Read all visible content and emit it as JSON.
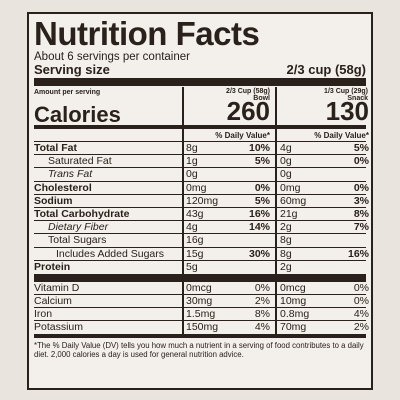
{
  "title": "Nutrition Facts",
  "servings": "About 6 servings per container",
  "serving_size_label": "Serving size",
  "serving_size_value": "2/3 cup (58g)",
  "amount_per_serving": "Amount per serving",
  "col1_head": "2/3 Cup (58g) Bowl",
  "col2_head": "1/3 Cup (29g) Snack",
  "calories_label": "Calories",
  "calories_1": "260",
  "calories_2": "130",
  "dv_label": "% Daily Value*",
  "nutrients": [
    {
      "name": "Total Fat",
      "v1": "8g",
      "p1": "10%",
      "v2": "4g",
      "p2": "5%"
    },
    {
      "name": "Saturated Fat",
      "v1": "1g",
      "p1": "5%",
      "v2": "0g",
      "p2": "0%"
    },
    {
      "name": "Trans Fat",
      "v1": "0g",
      "p1": "",
      "v2": "0g",
      "p2": ""
    },
    {
      "name": "Cholesterol",
      "v1": "0mg",
      "p1": "0%",
      "v2": "0mg",
      "p2": "0%"
    },
    {
      "name": "Sodium",
      "v1": "120mg",
      "p1": "5%",
      "v2": "60mg",
      "p2": "3%"
    },
    {
      "name": "Total Carbohydrate",
      "v1": "43g",
      "p1": "16%",
      "v2": "21g",
      "p2": "8%"
    },
    {
      "name": "Dietary Fiber",
      "v1": "4g",
      "p1": "14%",
      "v2": "2g",
      "p2": "7%"
    },
    {
      "name": "Total Sugars",
      "v1": "16g",
      "p1": "",
      "v2": "8g",
      "p2": ""
    },
    {
      "name": "Includes Added Sugars",
      "v1": "15g",
      "p1": "30%",
      "v2": "8g",
      "p2": "16%"
    },
    {
      "name": "Protein",
      "v1": "5g",
      "p1": "",
      "v2": "2g",
      "p2": ""
    }
  ],
  "vitamins": [
    {
      "name": "Vitamin D",
      "v1": "0mcg",
      "p1": "0%",
      "v2": "0mcg",
      "p2": "0%"
    },
    {
      "name": "Calcium",
      "v1": "30mg",
      "p1": "2%",
      "v2": "10mg",
      "p2": "0%"
    },
    {
      "name": "Iron",
      "v1": "1.5mg",
      "p1": "8%",
      "v2": "0.8mg",
      "p2": "4%"
    },
    {
      "name": "Potassium",
      "v1": "150mg",
      "p1": "4%",
      "v2": "70mg",
      "p2": "2%"
    }
  ],
  "footnote": "*The % Daily Value (DV) tells you how much a nutrient in a serving of food contributes to a daily diet. 2,000 calories a day is used for general nutrition advice."
}
